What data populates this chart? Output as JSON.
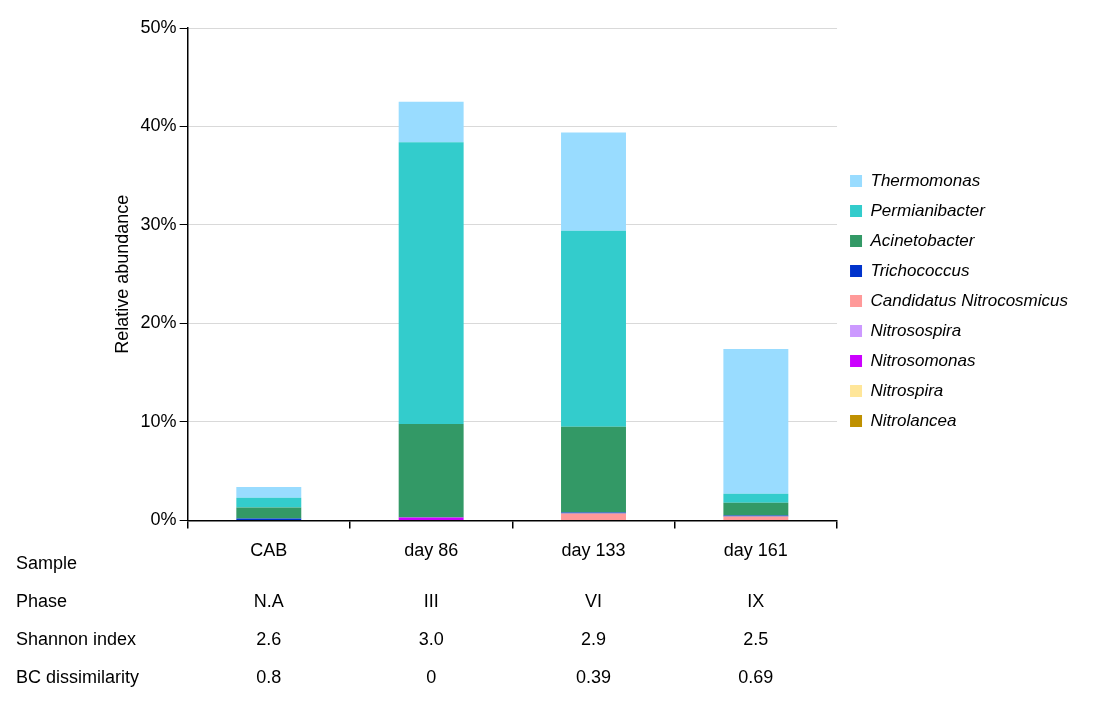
{
  "chart_data": {
    "type": "bar",
    "stacked": true,
    "ylabel": "Relative abundance",
    "xlabel": "Sample",
    "categories": [
      "CAB",
      "day 86",
      "day 133",
      "day 161"
    ],
    "series": [
      {
        "name": "Nitrolancea",
        "color": "#bf9000",
        "values": [
          0,
          0,
          0,
          0
        ]
      },
      {
        "name": "Nitrospira",
        "color": "#ffe699",
        "values": [
          0,
          0,
          0,
          0
        ]
      },
      {
        "name": "Nitrosomonas",
        "color": "#cc00ff",
        "values": [
          0,
          0.3,
          0,
          0
        ]
      },
      {
        "name": "Nitrosospira",
        "color": "#cc99ff",
        "values": [
          0,
          0,
          0,
          0
        ]
      },
      {
        "name": "Candidatus Nitrocosmicus",
        "color": "#ff9999",
        "values": [
          0,
          0,
          0.7,
          0.4
        ]
      },
      {
        "name": "Trichococcus",
        "color": "#0033cc",
        "values": [
          0.2,
          0,
          0.1,
          0.1
        ]
      },
      {
        "name": "Acinetobacter",
        "color": "#339966",
        "values": [
          1.1,
          9.5,
          8.7,
          1.3
        ]
      },
      {
        "name": "Permianibacter",
        "color": "#33cccc",
        "values": [
          1.0,
          28.6,
          19.9,
          0.9
        ]
      },
      {
        "name": "Thermomonas",
        "color": "#99dcff",
        "values": [
          1.1,
          4.1,
          10.0,
          14.7
        ]
      }
    ],
    "ylim": [
      0,
      50
    ],
    "yticks": [
      {
        "value": 0,
        "label": "0%"
      },
      {
        "value": 10,
        "label": "10%"
      },
      {
        "value": 20,
        "label": "20%"
      },
      {
        "value": 30,
        "label": "30%"
      },
      {
        "value": 40,
        "label": "40%"
      },
      {
        "value": 50,
        "label": "50%"
      }
    ],
    "grid": "y",
    "legend": "right",
    "annotations": [
      "Phase",
      "N.A",
      "III",
      "VI",
      "IX",
      "Shannon index",
      "2.6",
      "3.0",
      "2.9",
      "2.5",
      "BC dissimilarity",
      "0.8",
      "0",
      "0.39",
      "0.69"
    ]
  }
}
